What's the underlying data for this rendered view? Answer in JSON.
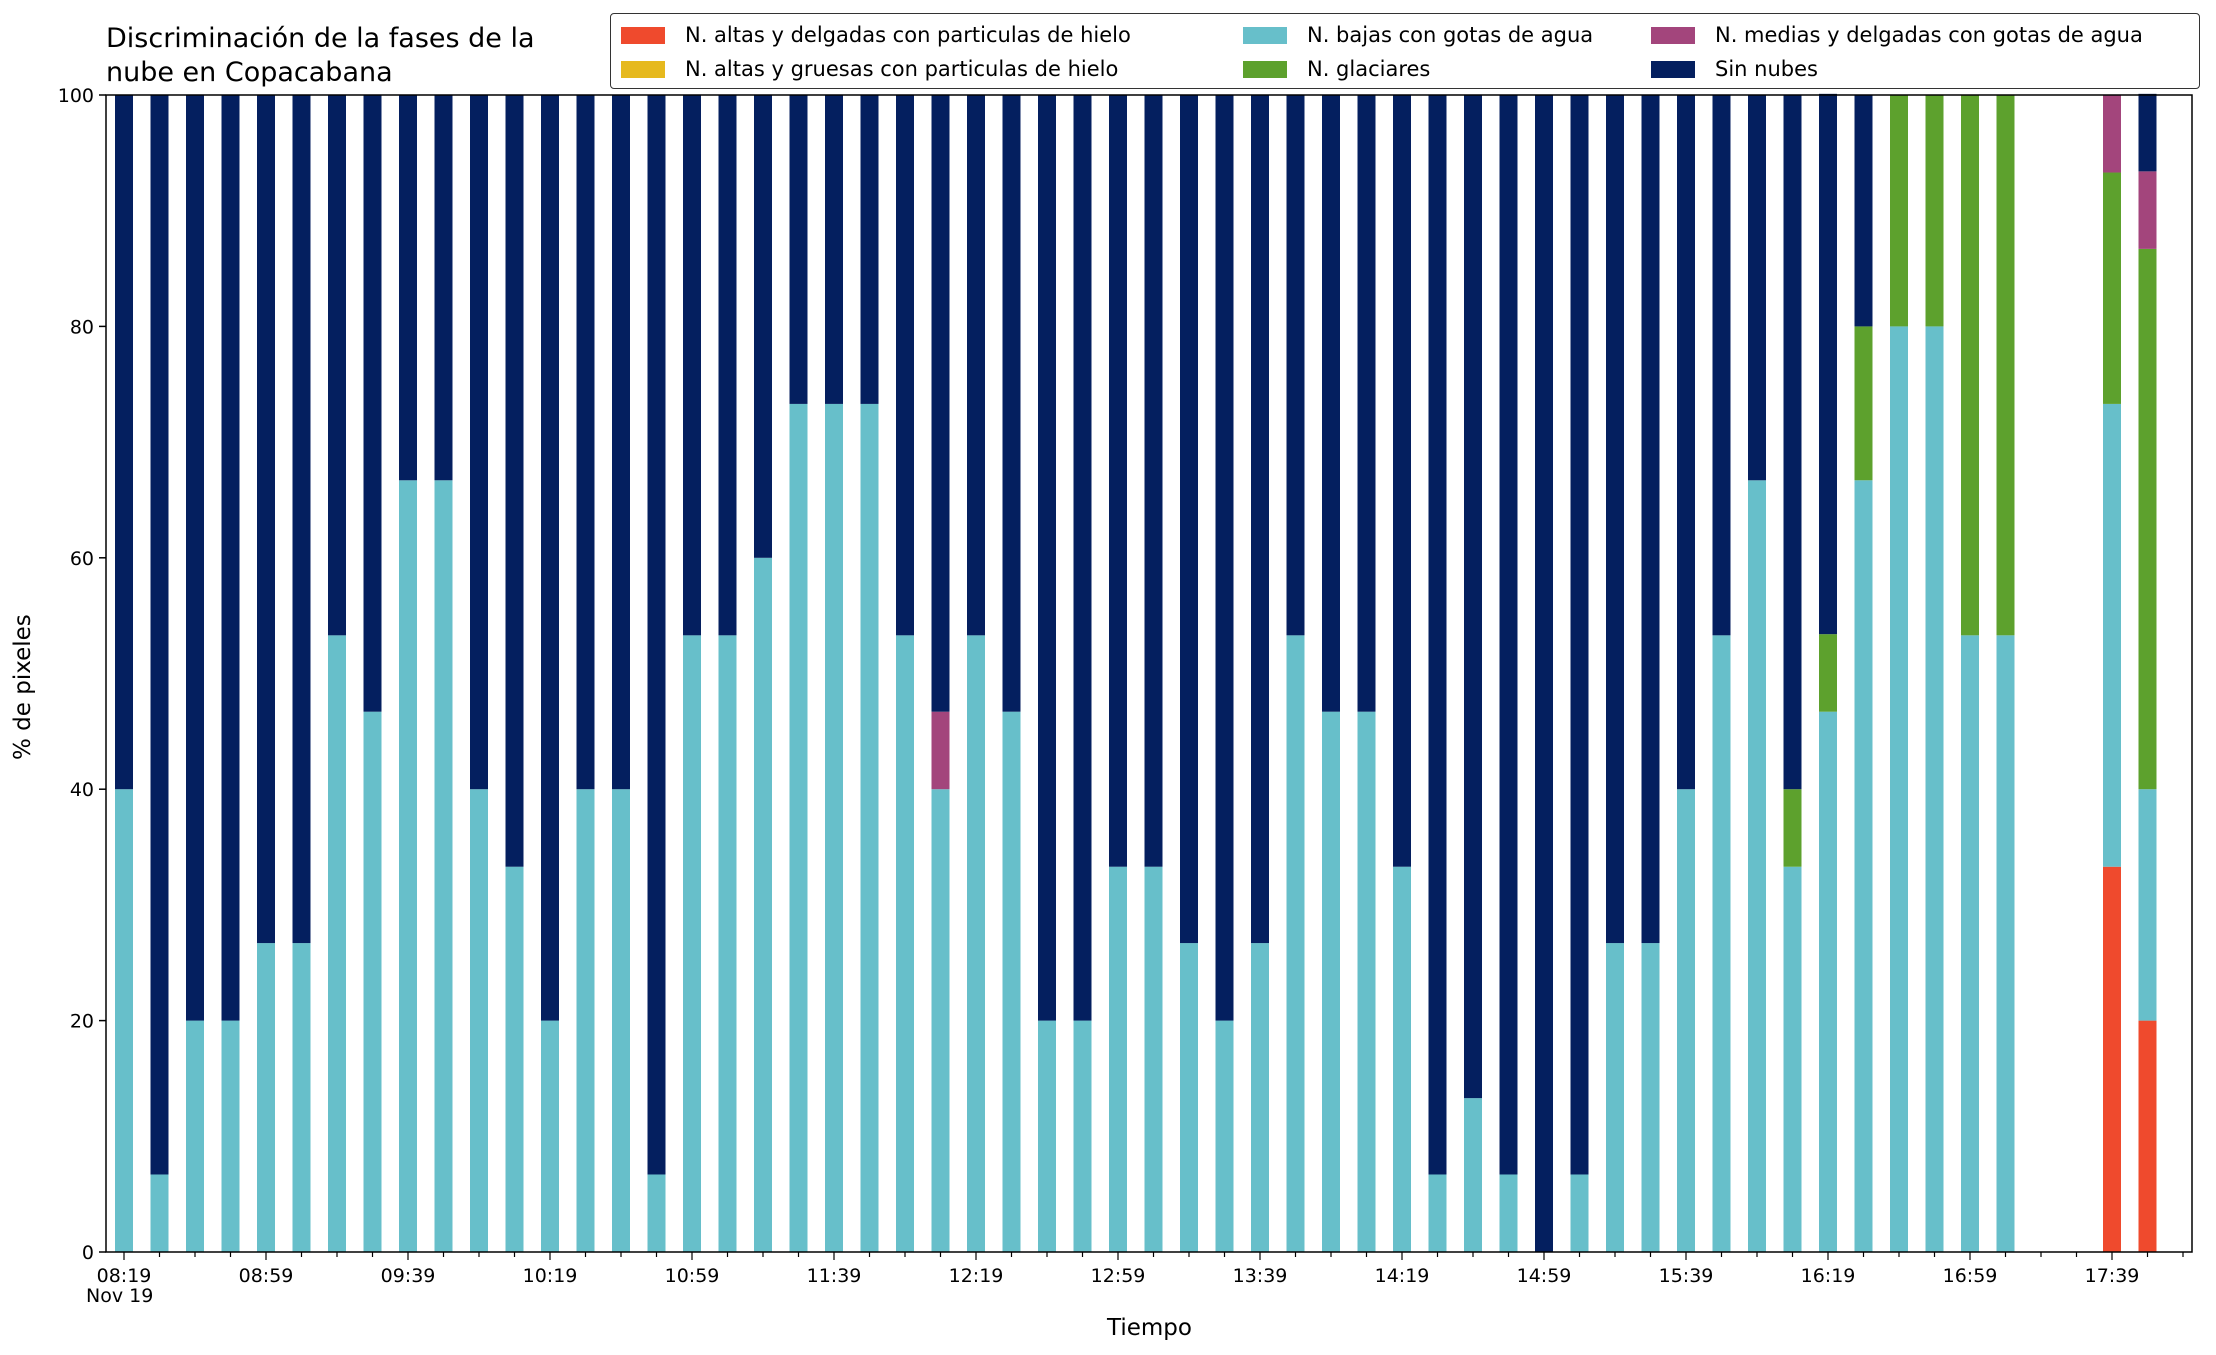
{
  "chart_data": {
    "type": "bar",
    "stacked": true,
    "title": "Discriminación de la fases de la\nnube en Copacabana",
    "xlabel": "Tiempo",
    "ylabel": "% de pixeles",
    "ylim": [
      0,
      100
    ],
    "yticks": [
      0,
      20,
      40,
      60,
      80,
      100
    ],
    "grid": false,
    "legend_position": "top-right",
    "x_date_caption": "Nov 19",
    "xtick_labels": [
      "08:19",
      "08:59",
      "09:39",
      "10:19",
      "10:59",
      "11:39",
      "12:19",
      "12:59",
      "13:39",
      "14:19",
      "14:59",
      "15:39",
      "16:19",
      "16:59",
      "17:39"
    ],
    "categories": [
      "08:19",
      "08:29",
      "08:39",
      "08:49",
      "08:59",
      "09:09",
      "09:19",
      "09:29",
      "09:39",
      "09:49",
      "09:59",
      "10:09",
      "10:19",
      "10:29",
      "10:39",
      "10:49",
      "10:59",
      "11:09",
      "11:19",
      "11:29",
      "11:39",
      "11:49",
      "11:59",
      "12:09",
      "12:19",
      "12:29",
      "12:39",
      "12:49",
      "12:59",
      "13:09",
      "13:19",
      "13:29",
      "13:39",
      "13:49",
      "13:59",
      "14:09",
      "14:19",
      "14:29",
      "14:39",
      "14:49",
      "14:59",
      "15:09",
      "15:19",
      "15:29",
      "15:39",
      "15:49",
      "15:59",
      "16:09",
      "16:19",
      "16:29",
      "16:39",
      "16:49",
      "16:59",
      "17:09",
      "17:19",
      "17:29",
      "17:39",
      "17:49"
    ],
    "series": [
      {
        "name": "N. altas y delgadas con particulas de hielo",
        "color": "#ef4a2d",
        "values": [
          0,
          0,
          0,
          0,
          0,
          0,
          0,
          0,
          0,
          0,
          0,
          0,
          0,
          0,
          0,
          0,
          0,
          0,
          0,
          0,
          0,
          0,
          0,
          0,
          0,
          0,
          0,
          0,
          0,
          0,
          0,
          0,
          0,
          0,
          0,
          0,
          0,
          0,
          0,
          0,
          0,
          0,
          0,
          0,
          0,
          0,
          0,
          0,
          0,
          0,
          0,
          0,
          0,
          0,
          null,
          null,
          33.3,
          20
        ]
      },
      {
        "name": "N. altas y gruesas con particulas de hielo",
        "color": "#e6b91e",
        "values": [
          0,
          0,
          0,
          0,
          0,
          0,
          0,
          0,
          0,
          0,
          0,
          0,
          0,
          0,
          0,
          0,
          0,
          0,
          0,
          0,
          0,
          0,
          0,
          0,
          0,
          0,
          0,
          0,
          0,
          0,
          0,
          0,
          0,
          0,
          0,
          0,
          0,
          0,
          0,
          0,
          0,
          0,
          0,
          0,
          0,
          0,
          0,
          0,
          0,
          0,
          0,
          0,
          0,
          0,
          null,
          null,
          0,
          0
        ]
      },
      {
        "name": "N. bajas con gotas de agua",
        "color": "#67bfca",
        "values": [
          40,
          6.7,
          20,
          20,
          26.7,
          26.7,
          53.3,
          46.7,
          66.7,
          66.7,
          40,
          33.3,
          20,
          40,
          40,
          6.7,
          53.3,
          53.3,
          60,
          73.3,
          73.3,
          73.3,
          53.3,
          40,
          53.3,
          46.7,
          20,
          20,
          33.3,
          33.3,
          26.7,
          20,
          26.7,
          53.3,
          46.7,
          46.7,
          33.3,
          6.7,
          13.3,
          6.7,
          0,
          6.7,
          26.7,
          26.7,
          40,
          53.3,
          66.7,
          33.3,
          46.7,
          66.7,
          80,
          80,
          53.3,
          53.3,
          null,
          null,
          40,
          20
        ]
      },
      {
        "name": "N. glaciares",
        "color": "#5da12d",
        "values": [
          0,
          0,
          0,
          0,
          0,
          0,
          0,
          0,
          0,
          0,
          0,
          0,
          0,
          0,
          0,
          0,
          0,
          0,
          0,
          0,
          0,
          0,
          0,
          0,
          0,
          0,
          0,
          0,
          0,
          0,
          0,
          0,
          0,
          0,
          0,
          0,
          0,
          0,
          0,
          0,
          0,
          0,
          0,
          0,
          0,
          0,
          0,
          6.7,
          6.7,
          13.3,
          20,
          20,
          46.7,
          46.7,
          null,
          null,
          20,
          46.7
        ]
      },
      {
        "name": "N. medias y delgadas con gotas de agua",
        "color": "#a3457c",
        "values": [
          0,
          0,
          0,
          0,
          0,
          0,
          0,
          0,
          0,
          0,
          0,
          0,
          0,
          0,
          0,
          0,
          0,
          0,
          0,
          0,
          0,
          0,
          0,
          6.7,
          0,
          0,
          0,
          0,
          0,
          0,
          0,
          0,
          0,
          0,
          0,
          0,
          0,
          0,
          0,
          0,
          0,
          0,
          0,
          0,
          0,
          0,
          0,
          0,
          0,
          0,
          0,
          0,
          0,
          0,
          null,
          null,
          6.7,
          6.7
        ]
      },
      {
        "name": "Sin nubes",
        "color": "#041f5f",
        "values": [
          60,
          93.3,
          80,
          80,
          73.3,
          73.3,
          46.7,
          53.3,
          33.3,
          33.3,
          60,
          66.7,
          80,
          60,
          60,
          93.3,
          46.7,
          46.7,
          40,
          26.7,
          26.7,
          26.7,
          46.7,
          53.3,
          46.7,
          53.3,
          80,
          80,
          66.7,
          66.7,
          73.3,
          80,
          73.3,
          46.7,
          53.3,
          53.3,
          66.7,
          93.3,
          86.7,
          93.3,
          100,
          93.3,
          73.3,
          73.3,
          60,
          46.7,
          33.3,
          60,
          46.7,
          20,
          0,
          0,
          0,
          0,
          null,
          null,
          0,
          6.7
        ]
      }
    ]
  }
}
